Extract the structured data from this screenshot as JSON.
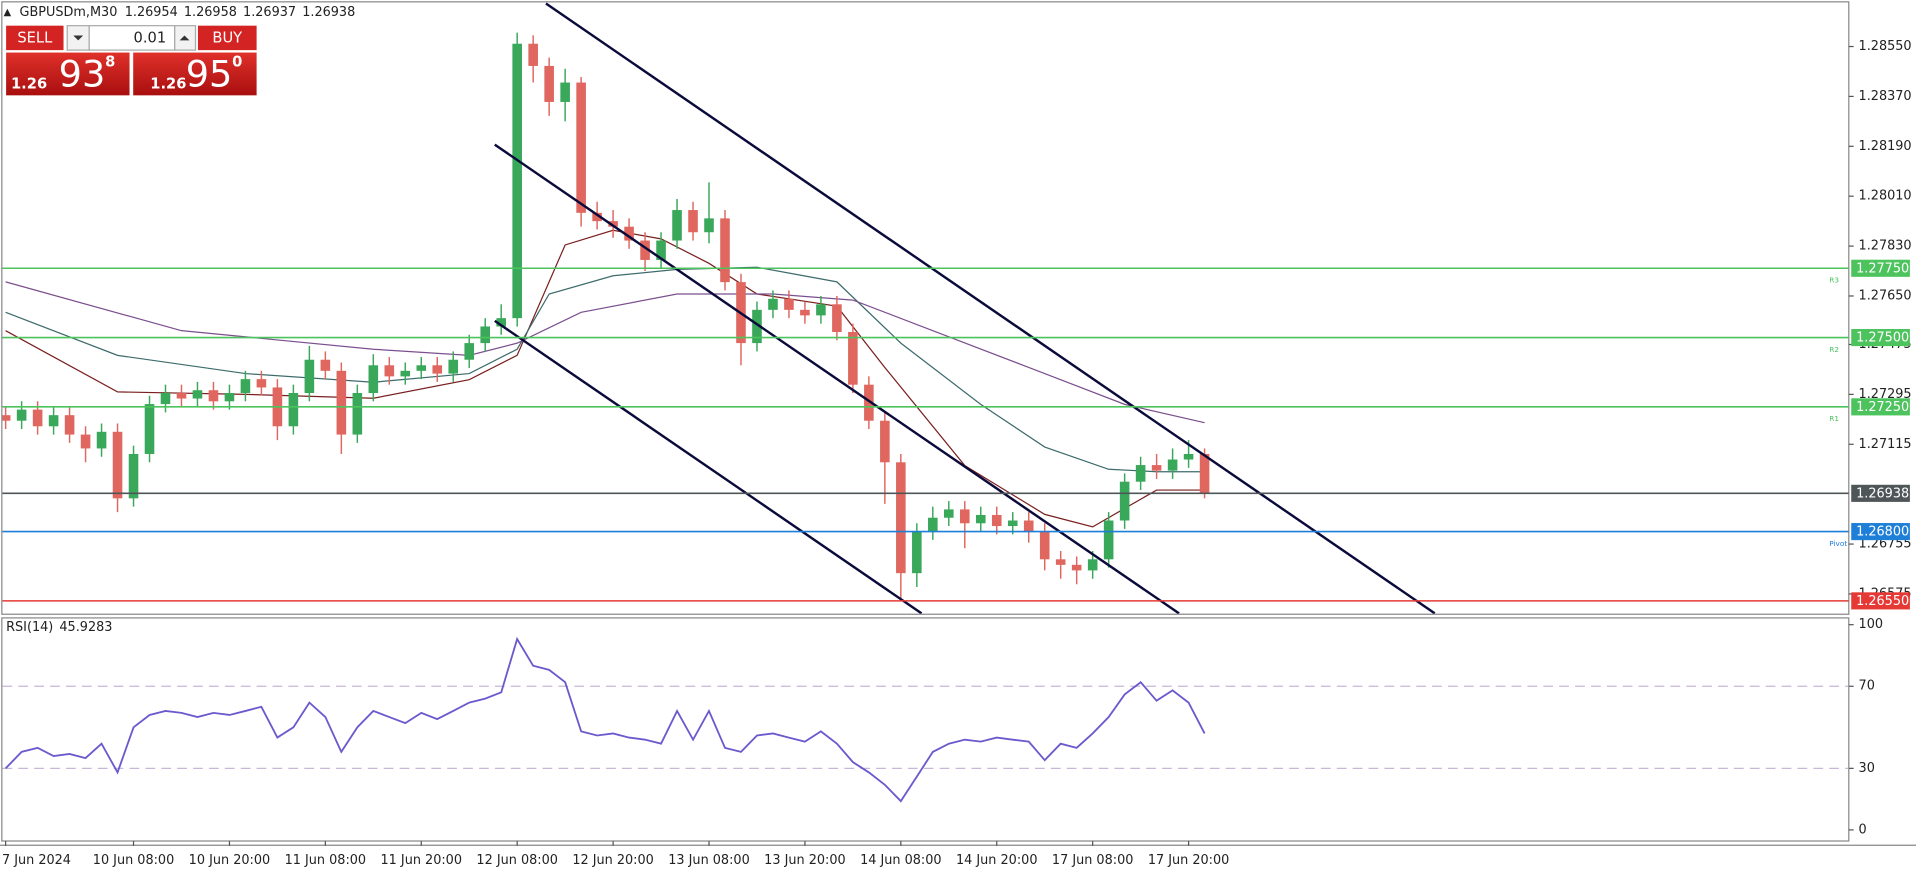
{
  "header": {
    "symbol": "GBPUSDm,M30",
    "quote": [
      1.26954,
      1.26958,
      1.26937,
      1.26938
    ]
  },
  "trade_panel": {
    "sell": "SELL",
    "buy": "BUY",
    "lot": "0.01",
    "bid": {
      "prefix": "1.26",
      "pips": "93",
      "fraction": "8"
    },
    "ask": {
      "prefix": "1.26",
      "pips": "95",
      "fraction": "0"
    }
  },
  "chart_data": [
    {
      "type": "candlestick",
      "xlim": [
        -0.2,
        115.3
      ],
      "ylim": [
        1.26504,
        1.28709
      ],
      "yticks": [
        {
          "value": 1.2855,
          "label": "1.28550"
        },
        {
          "value": 1.2837,
          "label": "1.28370"
        },
        {
          "value": 1.2819,
          "label": "1.28190"
        },
        {
          "value": 1.2801,
          "label": "1.28010"
        },
        {
          "value": 1.2783,
          "label": "1.27830"
        },
        {
          "value": 1.2765,
          "label": "1.27650"
        },
        1.27475,
        1.27295,
        1.27115,
        1.26755,
        1.26575
      ],
      "xticks": [
        {
          "value": 0,
          "label": "7 Jun 2024"
        },
        {
          "value": 8,
          "label": "10 Jun 08:00"
        },
        {
          "value": 14,
          "label": "10 Jun 20:00"
        },
        {
          "value": 20,
          "label": "11 Jun 08:00"
        },
        {
          "value": 26,
          "label": "11 Jun 20:00"
        },
        {
          "value": 32,
          "label": "12 Jun 08:00"
        },
        {
          "value": 38,
          "label": "12 Jun 20:00"
        },
        {
          "value": 44,
          "label": "13 Jun 08:00"
        },
        {
          "value": 50,
          "label": "13 Jun 20:00"
        },
        {
          "value": 56,
          "label": "14 Jun 08:00"
        },
        {
          "value": 62,
          "label": "14 Jun 20:00"
        },
        {
          "value": 68,
          "label": "17 Jun 08:00"
        },
        {
          "value": 74,
          "label": "17 Jun 20:00"
        }
      ],
      "up_color": "#3aa85a",
      "down_color": "#e0675f",
      "open": [
        1.2722,
        1.272,
        1.2724,
        1.2718,
        1.2722,
        1.2715,
        1.271,
        1.2716,
        1.2692,
        1.2708,
        1.2726,
        1.273,
        1.2728,
        1.2731,
        1.2727,
        1.273,
        1.2735,
        1.2732,
        1.2718,
        1.273,
        1.2742,
        1.2738,
        1.2715,
        1.273,
        1.274,
        1.2736,
        1.2738,
        1.274,
        1.2737,
        1.2742,
        1.2748,
        1.2754,
        1.2757,
        1.2856,
        1.2848,
        1.2835,
        1.2842,
        1.2795,
        1.2792,
        1.279,
        1.2785,
        1.2778,
        1.2785,
        1.2796,
        1.2788,
        1.2793,
        1.277,
        1.2748,
        1.276,
        1.2764,
        1.276,
        1.2758,
        1.2762,
        1.2752,
        1.2733,
        1.272,
        1.2705,
        1.2665,
        1.268,
        1.2685,
        1.2688,
        1.2683,
        1.2686,
        1.2682,
        1.2684,
        1.268,
        1.267,
        1.2668,
        1.2666,
        1.267,
        1.2684,
        1.2698,
        1.2704,
        1.2702,
        1.2706,
        1.2708
      ],
      "high": [
        1.2725,
        1.2727,
        1.2727,
        1.2725,
        1.2725,
        1.2718,
        1.2719,
        1.2719,
        1.2711,
        1.2729,
        1.2733,
        1.2733,
        1.2734,
        1.2734,
        1.2733,
        1.2738,
        1.2738,
        1.2735,
        1.2733,
        1.2747,
        1.2745,
        1.2741,
        1.2733,
        1.2744,
        1.2743,
        1.2741,
        1.2743,
        1.2743,
        1.2745,
        1.2751,
        1.2757,
        1.2762,
        1.286,
        1.2859,
        1.2851,
        1.2847,
        1.2844,
        1.2799,
        1.2796,
        1.2793,
        1.2788,
        1.2788,
        1.28,
        1.2799,
        1.2806,
        1.2796,
        1.2773,
        1.2763,
        1.2767,
        1.2767,
        1.2763,
        1.2765,
        1.2765,
        1.2755,
        1.2736,
        1.2723,
        1.2708,
        1.2683,
        1.2689,
        1.2691,
        1.2691,
        1.2689,
        1.2689,
        1.2687,
        1.2687,
        1.2683,
        1.2673,
        1.2671,
        1.2673,
        1.2687,
        1.2701,
        1.2707,
        1.2708,
        1.271,
        1.2713,
        1.271
      ],
      "low": [
        1.2717,
        1.2717,
        1.2715,
        1.2715,
        1.2712,
        1.2705,
        1.2707,
        1.2687,
        1.2689,
        1.2705,
        1.2723,
        1.2725,
        1.2725,
        1.2724,
        1.2724,
        1.2727,
        1.2729,
        1.2713,
        1.2715,
        1.2727,
        1.2735,
        1.2708,
        1.2712,
        1.2727,
        1.2733,
        1.2733,
        1.2735,
        1.2734,
        1.2734,
        1.2739,
        1.2745,
        1.2751,
        1.2754,
        1.2842,
        1.283,
        1.2828,
        1.279,
        1.2789,
        1.2786,
        1.2782,
        1.2774,
        1.2775,
        1.2782,
        1.2785,
        1.2784,
        1.2767,
        1.274,
        1.2745,
        1.2757,
        1.2757,
        1.2755,
        1.2755,
        1.2749,
        1.273,
        1.2717,
        1.269,
        1.2656,
        1.266,
        1.2677,
        1.2682,
        1.2674,
        1.268,
        1.2679,
        1.2679,
        1.2676,
        1.2666,
        1.2663,
        1.2661,
        1.2663,
        1.2667,
        1.2681,
        1.2695,
        1.2699,
        1.2699,
        1.2703,
        1.2692
      ],
      "close": [
        1.272,
        1.2724,
        1.2718,
        1.2722,
        1.2715,
        1.271,
        1.2716,
        1.2692,
        1.2708,
        1.2726,
        1.273,
        1.2728,
        1.2731,
        1.2727,
        1.273,
        1.2735,
        1.2732,
        1.2718,
        1.273,
        1.2742,
        1.2738,
        1.2715,
        1.273,
        1.274,
        1.2736,
        1.2738,
        1.274,
        1.2737,
        1.2742,
        1.2748,
        1.2754,
        1.2757,
        1.2856,
        1.2848,
        1.2835,
        1.2842,
        1.2795,
        1.2792,
        1.279,
        1.2785,
        1.2778,
        1.2785,
        1.2796,
        1.2788,
        1.2793,
        1.277,
        1.2748,
        1.276,
        1.2764,
        1.276,
        1.2758,
        1.2762,
        1.2752,
        1.2733,
        1.272,
        1.2705,
        1.2665,
        1.268,
        1.2685,
        1.2688,
        1.2683,
        1.2686,
        1.2682,
        1.2684,
        1.268,
        1.267,
        1.2668,
        1.2666,
        1.267,
        1.2684,
        1.2698,
        1.2704,
        1.2702,
        1.2706,
        1.2708,
        1.26938
      ],
      "moving_averages": [
        {
          "color": "#7a1f1f",
          "x": [
            0,
            7,
            15,
            23,
            29,
            32,
            35,
            38,
            41,
            44,
            47,
            52,
            55,
            60,
            65,
            68,
            72,
            75
          ],
          "values": [
            1.27525,
            1.27304,
            1.27295,
            1.27281,
            1.27348,
            1.27436,
            1.27834,
            1.27887,
            1.27856,
            1.27768,
            1.27657,
            1.27613,
            1.27392,
            1.27038,
            1.26862,
            1.26817,
            1.2695,
            1.2695
          ]
        },
        {
          "color": "#3d6b6b",
          "x": [
            0,
            7,
            15,
            23,
            29,
            32,
            34,
            38,
            42,
            47,
            52,
            56,
            61,
            65,
            69,
            72,
            75
          ],
          "values": [
            1.27591,
            1.27436,
            1.2737,
            1.27339,
            1.2737,
            1.27458,
            1.27657,
            1.27723,
            1.27746,
            1.27754,
            1.27701,
            1.2748,
            1.27259,
            1.27105,
            1.27025,
            1.27016,
            1.27016
          ]
        },
        {
          "color": "#7b4f8e",
          "x": [
            0,
            11,
            23,
            29,
            32,
            36,
            42,
            48,
            53,
            58,
            64,
            70,
            75
          ],
          "values": [
            1.27701,
            1.27525,
            1.27458,
            1.27436,
            1.2748,
            1.27591,
            1.27657,
            1.27657,
            1.27635,
            1.27525,
            1.27392,
            1.27259,
            1.27193
          ]
        }
      ],
      "trendlines": [
        {
          "color": "#0b0b3b",
          "x": [
            33.8,
            89.4
          ],
          "values": [
            1.28705,
            1.26505
          ]
        },
        {
          "color": "#0b0b3b",
          "x": [
            30.6,
            73.4
          ],
          "values": [
            1.28196,
            1.26505
          ]
        },
        {
          "color": "#0b0b3b",
          "x": [
            30.6,
            57.3
          ],
          "values": [
            1.2756,
            1.26505
          ]
        }
      ],
      "levels": [
        {
          "price": {
            "value": 1.2775,
            "label": "1.27750"
          },
          "color": "#4cc35c",
          "tag": "R3"
        },
        {
          "price": {
            "value": 1.275,
            "label": "1.27500"
          },
          "color": "#4cc35c",
          "tag": "R2"
        },
        {
          "price": {
            "value": 1.2725,
            "label": "1.27250"
          },
          "color": "#4cc35c",
          "tag": "R1"
        },
        {
          "price": 1.26938,
          "color": "#4f5658"
        },
        {
          "price": {
            "value": 1.268,
            "label": "1.26800"
          },
          "color": "#1e7fd8",
          "tag": "Pivot"
        },
        {
          "price": {
            "value": 1.2655,
            "label": "1.26550"
          },
          "color": "#e53935"
        }
      ]
    },
    {
      "type": "line",
      "title": "RSI(14)",
      "last_value": 45.9283,
      "ylim": [
        -5.4,
        103.6
      ],
      "yticks": [
        0,
        30,
        70,
        100
      ],
      "levels": [
        30,
        70
      ],
      "series": [
        {
          "color": "#6a5acd",
          "values": [
            30,
            38,
            40,
            36,
            37,
            35,
            42,
            28,
            50,
            56,
            58,
            57,
            55,
            57,
            56,
            58,
            60,
            45,
            50,
            62,
            55,
            38,
            50,
            58,
            55,
            52,
            57,
            54,
            58,
            62,
            64,
            67,
            93,
            80,
            78,
            72,
            48,
            46,
            47,
            45,
            44,
            42,
            58,
            44,
            58,
            40,
            38,
            46,
            47,
            45,
            43,
            48,
            42,
            33,
            28,
            22,
            14,
            26,
            38,
            42,
            44,
            43,
            45,
            44,
            43,
            34,
            42,
            40,
            47,
            55,
            66,
            72,
            63,
            68,
            62,
            47
          ]
        }
      ]
    }
  ]
}
